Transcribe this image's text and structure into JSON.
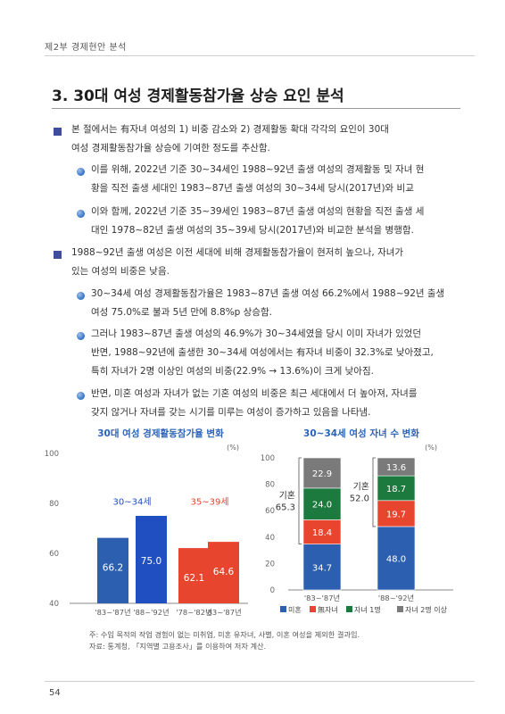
{
  "header": {
    "running_title": "제2부   경제현안 분석"
  },
  "section": {
    "title": "3. 30대 여성 경제활동참가율 상승 요인 분석"
  },
  "paragraphs": {
    "p1": [
      "본 절에서는 有자녀 여성의 1) 비중 감소와 2) 경제활동 확대 각각의 요인이 30대",
      "여성 경제활동참가율 상승에 기여한 정도를 추산함."
    ],
    "p1a": [
      "이를 위해, 2022년 기준 30~34세인 1988~92년 출생 여성의 경제활동 및 자녀 현",
      "황을 직전 출생 세대인 1983~87년 출생 여성의 30~34세 당시(2017년)와 비교"
    ],
    "p1b": [
      "이와 함께, 2022년 기준 35~39세인 1983~87년 출생 여성의 현황을 직전 출생 세",
      "대인 1978~82년 출생 여성의 35~39세 당시(2017년)와 비교한 분석을 병행함."
    ],
    "p2": [
      "1988~92년 출생 여성은 이전 세대에 비해 경제활동참가율이 현저히 높으나, 자녀가",
      "있는 여성의 비중은 낮음."
    ],
    "p2a": [
      "30~34세 여성 경제활동참가율은 1983~87년 출생 여성 66.2%에서 1988~92년 출생",
      "여성 75.0%로 불과 5년 만에 8.8%p 상승함."
    ],
    "p2b": [
      "그러나 1983~87년 출생 여성의 46.9%가 30~34세였을 당시 이미 자녀가 있었던",
      "반면, 1988~92년에 출생한 30~34세 여성에서는 有자녀 비중이 32.3%로 낮아졌고,",
      "특히 자녀가 2명 이상인 여성의 비중(22.9% → 13.6%)이 크게 낮아짐."
    ],
    "p2c": [
      "반면, 미혼 여성과 자녀가 없는 기혼 여성의 비중은 최근 세대에서 더 높아져, 자녀를",
      "갖지 않거나 자녀를 갖는 시기를 미루는 여성이 증가하고 있음을 나타냄."
    ]
  },
  "chart_data": [
    {
      "type": "bar",
      "title": "30대 여성 경제활동참가율 변화",
      "unit": "(%)",
      "ylim": [
        40,
        100
      ],
      "yticks": [
        40,
        60,
        80,
        100
      ],
      "group_labels": [
        "30~34세",
        "35~39세"
      ],
      "categories": [
        "'83~'87년",
        "'88~'92년",
        "'78~'82년",
        "'83~'87년"
      ],
      "values": [
        66.2,
        75.0,
        62.1,
        64.6
      ],
      "colors": [
        "#2c5fb0",
        "#1f4fc0",
        "#e8452f",
        "#e8452f"
      ]
    },
    {
      "type": "bar",
      "stacked": true,
      "title": "30~34세 여성 자녀 수 변화",
      "unit": "(%)",
      "ylim": [
        0,
        100
      ],
      "yticks": [
        0,
        20,
        40,
        60,
        80,
        100
      ],
      "categories": [
        "'83~'87년",
        "'88~'92년"
      ],
      "series": [
        {
          "name": "미혼",
          "values": [
            34.7,
            48.0
          ],
          "color": "#2c5fb0"
        },
        {
          "name": "無자녀",
          "values": [
            18.4,
            19.7
          ],
          "color": "#e8452f"
        },
        {
          "name": "자녀 1명",
          "values": [
            24.0,
            18.7
          ],
          "color": "#1d7a3e"
        },
        {
          "name": "자녀 2명 이상",
          "values": [
            22.9,
            13.6
          ],
          "color": "#7a7a7a"
        }
      ],
      "annotations": [
        {
          "label": "기혼",
          "value": "65.3"
        },
        {
          "label": "기혼",
          "value": "52.0"
        }
      ]
    }
  ],
  "notes": {
    "note1": "주: 수입 목적의 작업 경험이 없는 미취업, 미혼 유자녀, 사별, 이혼 여성을 제외한 결과임.",
    "note2": "자료: 통계청, 「지역별 고용조사」를 이용하여 저자 계산."
  },
  "footer": {
    "page_number": "54"
  }
}
